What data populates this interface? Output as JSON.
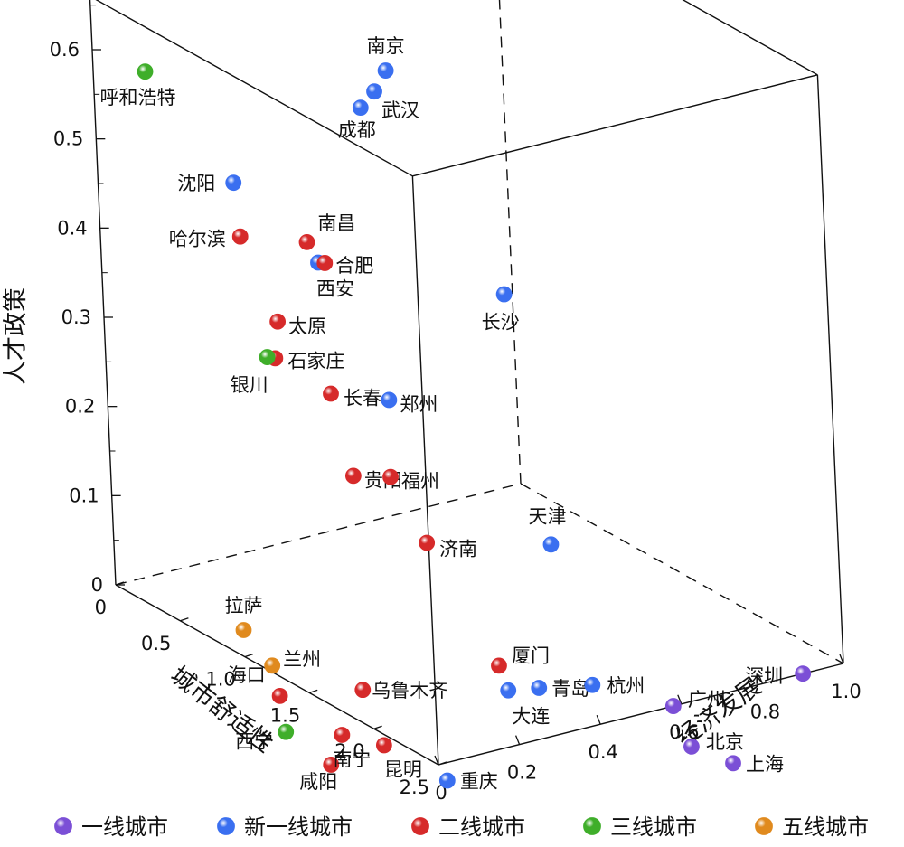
{
  "chart_data": {
    "type": "scatter3d",
    "axes": {
      "x": {
        "label": "城市舒适性",
        "range": [
          0,
          2.5
        ],
        "ticks": [
          "0",
          "0.5",
          "1.0",
          "1.5",
          "2.0",
          "2.5"
        ]
      },
      "y": {
        "label": "经济发展",
        "range": [
          0,
          1.0
        ],
        "ticks": [
          "0",
          "0.2",
          "0.4",
          "0.6",
          "0.8",
          "1.0"
        ]
      },
      "z": {
        "label": "人才政策",
        "range": [
          0,
          0.6
        ],
        "ticks": [
          "0",
          "0.1",
          "0.2",
          "0.3",
          "0.4",
          "0.5",
          "0.6"
        ]
      }
    },
    "legend": {
      "placement": "bottom",
      "entries": [
        {
          "key": "tier1",
          "name": "一线城市",
          "color": "#7b4fd6"
        },
        {
          "key": "newtier1",
          "name": "新一线城市",
          "color": "#3a6ff0"
        },
        {
          "key": "tier2",
          "name": "二线城市",
          "color": "#d62a2a"
        },
        {
          "key": "tier3",
          "name": "三线城市",
          "color": "#3fae2a"
        },
        {
          "key": "tier5",
          "name": "五线城市",
          "color": "#e08a1e"
        }
      ]
    },
    "points": [
      {
        "name": "南京",
        "series": "newtier1",
        "x": 1.25,
        "y": 0.33,
        "z": 0.64
      },
      {
        "name": "武汉",
        "series": "newtier1",
        "x": 1.25,
        "y": 0.3,
        "z": 0.62
      },
      {
        "name": "成都",
        "series": "newtier1",
        "x": 1.2,
        "y": 0.28,
        "z": 0.6
      },
      {
        "name": "呼和浩特",
        "series": "tier3",
        "x": 0.25,
        "y": 0.05,
        "z": 0.59
      },
      {
        "name": "沈阳",
        "series": "newtier1",
        "x": 0.75,
        "y": 0.1,
        "z": 0.5
      },
      {
        "name": "哈尔滨",
        "series": "tier2",
        "x": 0.85,
        "y": 0.08,
        "z": 0.45
      },
      {
        "name": "南昌",
        "series": "tier2",
        "x": 1.15,
        "y": 0.15,
        "z": 0.46
      },
      {
        "name": "西安",
        "series": "newtier1",
        "x": 1.2,
        "y": 0.16,
        "z": 0.44
      },
      {
        "name": "合肥",
        "series": "tier2",
        "x": 1.22,
        "y": 0.17,
        "z": 0.44
      },
      {
        "name": "长沙",
        "series": "newtier1",
        "x": 1.95,
        "y": 0.38,
        "z": 0.44
      },
      {
        "name": "太原",
        "series": "tier2",
        "x": 1.15,
        "y": 0.07,
        "z": 0.38
      },
      {
        "name": "石家庄",
        "series": "tier2",
        "x": 1.15,
        "y": 0.06,
        "z": 0.34
      },
      {
        "name": "银川",
        "series": "tier3",
        "x": 1.12,
        "y": 0.05,
        "z": 0.34
      },
      {
        "name": "长春",
        "series": "tier2",
        "x": 1.45,
        "y": 0.1,
        "z": 0.32
      },
      {
        "name": "郑州",
        "series": "newtier1",
        "x": 1.65,
        "y": 0.18,
        "z": 0.32
      },
      {
        "name": "贵阳",
        "series": "tier2",
        "x": 1.6,
        "y": 0.1,
        "z": 0.24
      },
      {
        "name": "福州",
        "series": "tier2",
        "x": 1.7,
        "y": 0.16,
        "z": 0.24
      },
      {
        "name": "天津",
        "series": "newtier1",
        "x": 2.3,
        "y": 0.36,
        "z": 0.19
      },
      {
        "name": "济南",
        "series": "tier2",
        "x": 1.9,
        "y": 0.18,
        "z": 0.18
      },
      {
        "name": "厦门",
        "series": "tier2",
        "x": 2.3,
        "y": 0.22,
        "z": 0.07
      },
      {
        "name": "大连",
        "series": "newtier1",
        "x": 2.3,
        "y": 0.24,
        "z": 0.04
      },
      {
        "name": "青岛",
        "series": "newtier1",
        "x": 2.35,
        "y": 0.3,
        "z": 0.04
      },
      {
        "name": "杭州",
        "series": "newtier1",
        "x": 2.45,
        "y": 0.4,
        "z": 0.04
      },
      {
        "name": "广州",
        "series": "tier1",
        "x": 2.5,
        "y": 0.58,
        "z": 0.0
      },
      {
        "name": "深圳",
        "series": "tier1",
        "x": 2.5,
        "y": 0.9,
        "z": 0.0
      },
      {
        "name": "北京",
        "series": "tier1",
        "x": 2.5,
        "y": 0.62,
        "z": -0.05
      },
      {
        "name": "上海",
        "series": "tier1",
        "x": 2.5,
        "y": 0.72,
        "z": -0.08
      },
      {
        "name": "重庆",
        "series": "newtier1",
        "x": 2.5,
        "y": 0.02,
        "z": -0.02
      },
      {
        "name": "拉萨",
        "series": "tier5",
        "x": 1.0,
        "y": 0.0,
        "z": 0.03
      },
      {
        "name": "兰州",
        "series": "tier5",
        "x": 1.15,
        "y": 0.02,
        "z": 0.0
      },
      {
        "name": "海口",
        "series": "tier2",
        "x": 1.2,
        "y": 0.02,
        "z": -0.03
      },
      {
        "name": "西宁",
        "series": "tier3",
        "x": 1.3,
        "y": 0.0,
        "z": -0.06
      },
      {
        "name": "咸阳",
        "series": "tier2",
        "x": 1.55,
        "y": 0.03,
        "z": -0.08
      },
      {
        "name": "乌鲁木齐",
        "series": "tier2",
        "x": 1.6,
        "y": 0.1,
        "z": 0.0
      },
      {
        "name": "南宁",
        "series": "tier2",
        "x": 1.55,
        "y": 0.06,
        "z": -0.05
      },
      {
        "name": "昆明",
        "series": "tier2",
        "x": 1.75,
        "y": 0.1,
        "z": -0.05
      }
    ]
  }
}
